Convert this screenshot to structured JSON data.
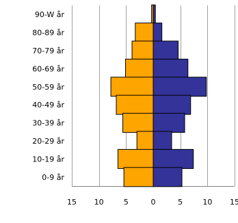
{
  "chart_data": {
    "type": "bar",
    "orientation": "horizontal",
    "layout": "population-pyramid",
    "categories": [
      "90-W år",
      "80-89 år",
      "70-79 år",
      "60-69 år",
      "50-59 år",
      "40-49 år",
      "30-39 år",
      "20-29 år",
      "10-19 år",
      "0-9 år"
    ],
    "series": [
      {
        "color": "#FFA500",
        "side": "left",
        "values": [
          0.3,
          3.3,
          3.9,
          5.1,
          7.8,
          6.8,
          5.6,
          3.0,
          6.5,
          5.4
        ]
      },
      {
        "color": "#333399",
        "side": "right",
        "values": [
          0.4,
          1.6,
          4.6,
          6.4,
          9.8,
          6.9,
          5.8,
          3.4,
          7.4,
          5.3
        ]
      }
    ],
    "xticks": [
      "15",
      "10",
      "5",
      "0",
      "5",
      "10",
      "15"
    ],
    "xlim": [
      -15,
      15
    ],
    "grid": "vertical",
    "legend": "none",
    "title": "",
    "xlabel": "",
    "ylabel": ""
  }
}
